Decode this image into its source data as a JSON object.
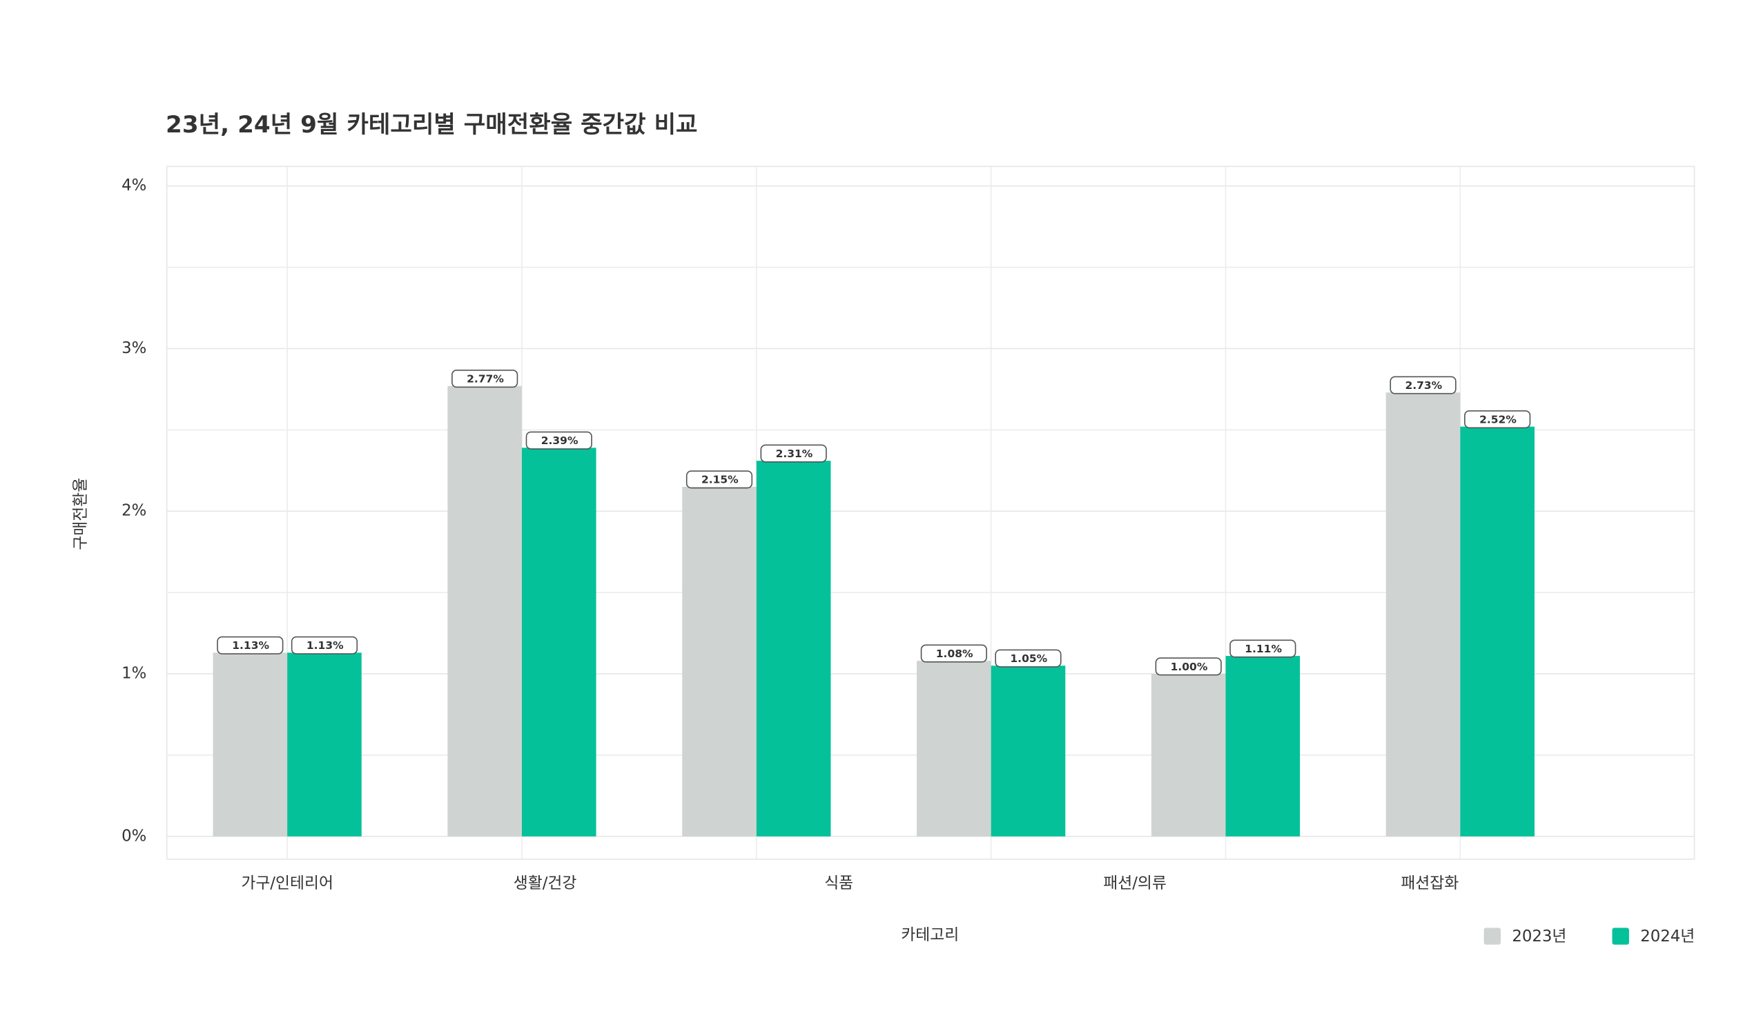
{
  "chart_data": {
    "type": "bar",
    "title": "23년, 24년 9월 카테고리별 구매전환율 중간값 비교",
    "x_label": "카테고리",
    "y_label": "구매전환율",
    "categories": [
      "가구/인테리어",
      "생활/건강",
      "식품",
      null,
      "패션/의류",
      "패션잡화"
    ],
    "series": [
      {
        "name": "2023년",
        "color": "#cfd4d3",
        "values": [
          1.13,
          2.77,
          2.15,
          1.08,
          1.0,
          2.73
        ],
        "value_labels": [
          "1.13%",
          "2.77%",
          "2.15%",
          "1.08%",
          "1.00%",
          "2.73%"
        ]
      },
      {
        "name": "2024년",
        "color": "#05c19a",
        "values": [
          1.13,
          2.39,
          2.31,
          1.05,
          1.11,
          2.52
        ],
        "value_labels": [
          "1.13%",
          "2.39%",
          "2.31%",
          "1.05%",
          "1.11%",
          "2.52%"
        ]
      }
    ],
    "ylim": [
      -0.14,
      4.12
    ],
    "yticks": [
      {
        "value": 0,
        "label": "0%"
      },
      {
        "value": 1,
        "label": "1%"
      },
      {
        "value": 2,
        "label": "2%"
      },
      {
        "value": 3,
        "label": "3%"
      },
      {
        "value": 4,
        "label": "4%"
      }
    ],
    "minor_yticks": [
      0.5,
      1.5,
      2.5,
      3.5
    ],
    "grid": true,
    "legend": "bottom-right"
  }
}
